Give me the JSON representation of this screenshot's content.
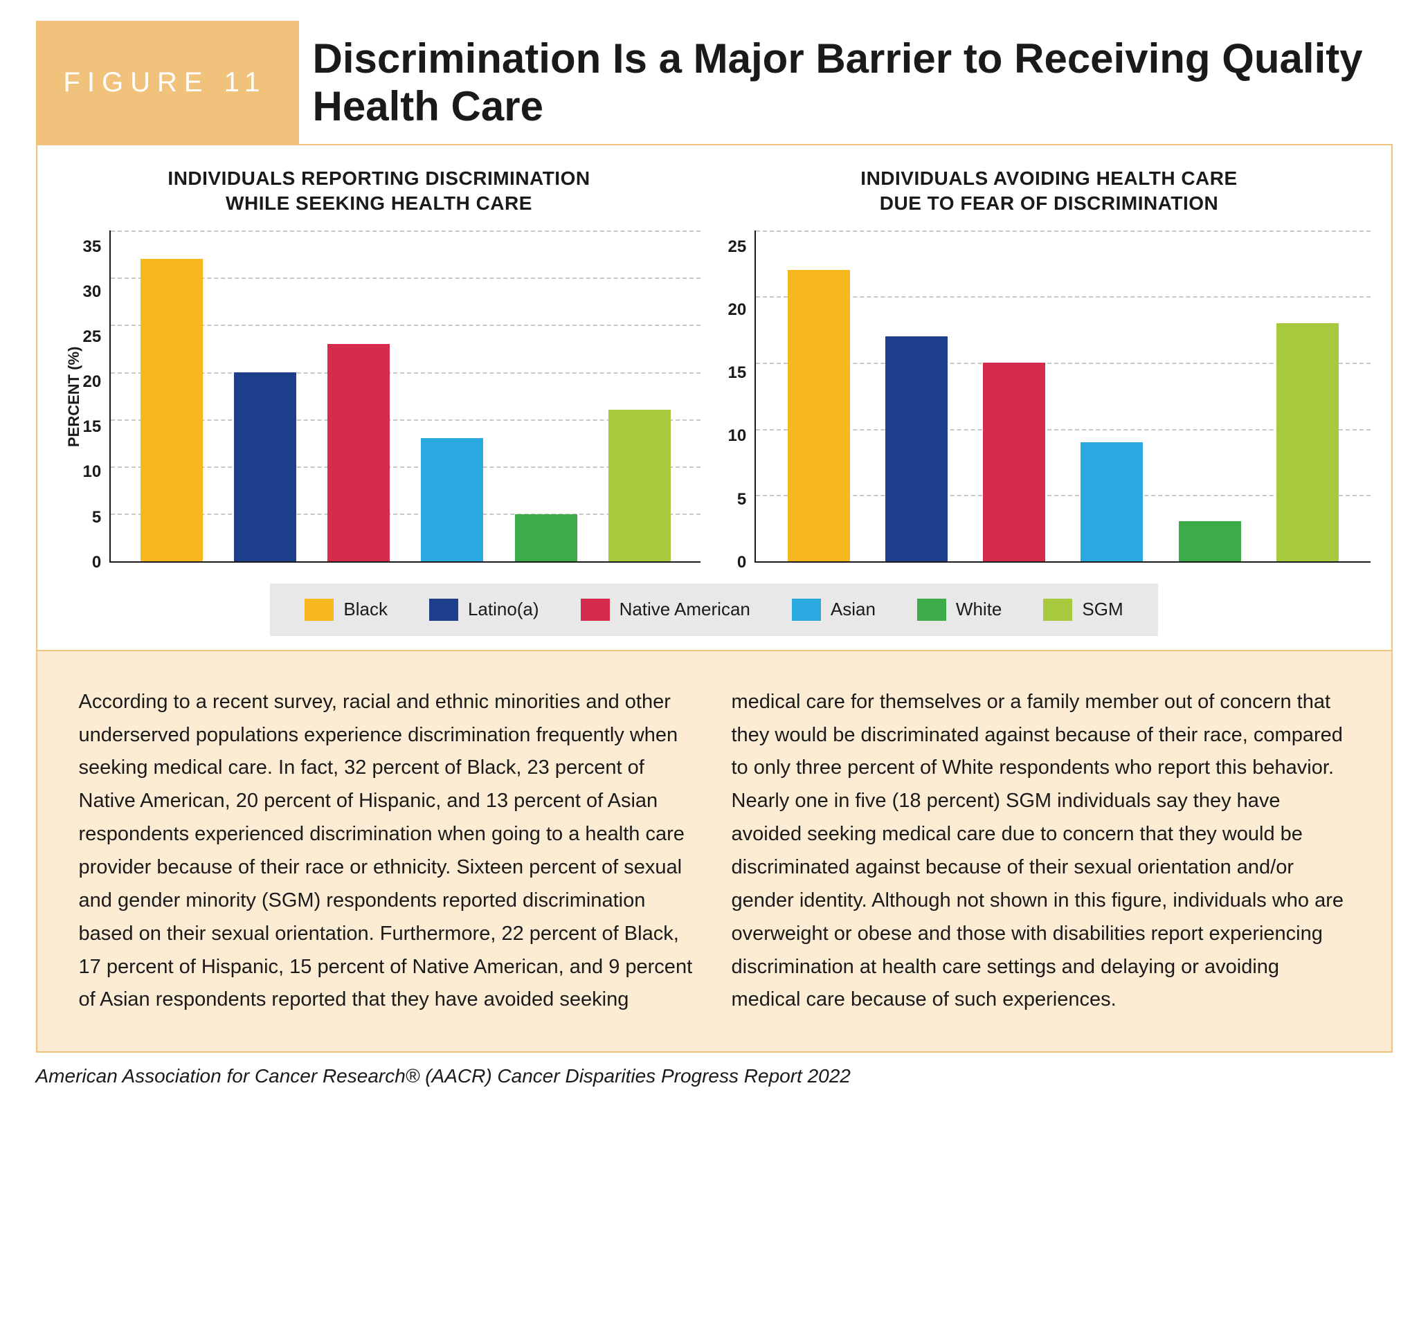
{
  "figure_label": "FIGURE 11",
  "figure_title": "Discrimination Is a Major Barrier to Receiving Quality Health Care",
  "categories": [
    "Black",
    "Latino(a)",
    "Native American",
    "Asian",
    "White",
    "SGM"
  ],
  "category_colors": [
    "#f7b71e",
    "#1d3e8a",
    "#d52b4c",
    "#2aa8e0",
    "#3cab4a",
    "#a8c93e"
  ],
  "legend_bg": "#e8e8e8",
  "grid_color": "#c8c8c8",
  "axis_color": "#1a1a1a",
  "caption_bg": "#fbecd3",
  "accent_color": "#f0c27b",
  "y_axis_label": "PERCENT (%)",
  "chart_left": {
    "title_line1": "INDIVIDUALS REPORTING DISCRIMINATION",
    "title_line2": "WHILE SEEKING HEALTH CARE",
    "values": [
      32,
      20,
      23,
      13,
      5,
      16
    ],
    "ymax": 35,
    "ytick_step": 5,
    "yticks": [
      0,
      5,
      10,
      15,
      20,
      25,
      30,
      35
    ]
  },
  "chart_right": {
    "title_line1": "INDIVIDUALS AVOIDING HEALTH CARE",
    "title_line2": "DUE TO FEAR OF DISCRIMINATION",
    "values": [
      22,
      17,
      15,
      9,
      3,
      18
    ],
    "ymax": 25,
    "ytick_step": 5,
    "yticks": [
      0,
      5,
      10,
      15,
      20,
      25
    ]
  },
  "caption": "According to a recent survey, racial and ethnic minorities and other underserved populations experience discrimination frequently when seeking medical care. In fact, 32 percent of Black, 23 percent of Native American, 20 percent of Hispanic, and 13 percent of Asian respondents experienced discrimination when going to a health care provider because of their race or ethnicity. Sixteen percent of sexual and gender minority (SGM) respondents reported discrimination based on their sexual orientation. Furthermore, 22 percent of Black, 17 percent of Hispanic, 15 percent of Native American, and 9 percent of Asian respondents reported that they have avoided seeking medical care for themselves or a family member out of concern that they would be discriminated against because of their race, compared to only three percent of White respondents who report this behavior. Nearly one in five (18 percent) SGM individuals say they have avoided seeking medical care due to concern that they would be discriminated against because of their sexual orientation and/or gender identity. Although not shown in this figure, individuals who are overweight or obese and those with disabilities report experiencing discrimination at health care settings and delaying or avoiding medical care because of such experiences.",
  "source": "American Association for Cancer Research® (AACR) Cancer Disparities Progress Report 2022"
}
